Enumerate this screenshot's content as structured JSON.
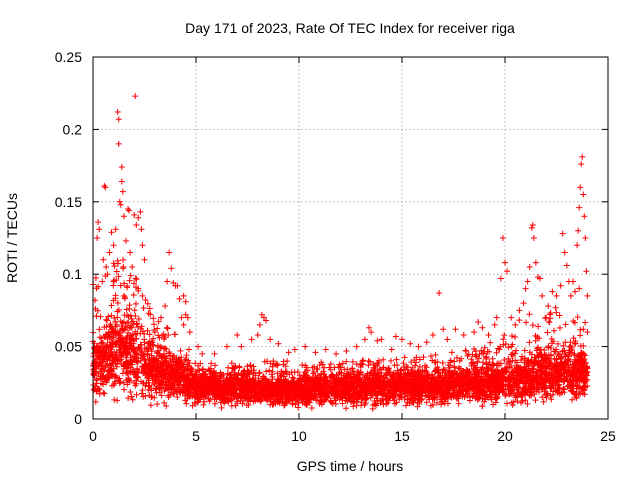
{
  "chart_data": {
    "type": "scatter",
    "title": "Day 171 of 2023, Rate Of TEC Index for receiver riga",
    "xlabel": "GPS time / hours",
    "ylabel": "ROTI / TECUs",
    "xlim": [
      0,
      25
    ],
    "ylim": [
      0,
      0.25
    ],
    "x_ticks": [
      0,
      5,
      10,
      15,
      20,
      25
    ],
    "x_tick_labels": [
      "0",
      "5",
      "10",
      "15",
      "20",
      "25"
    ],
    "y_ticks": [
      0,
      0.05,
      0.1,
      0.15,
      0.2,
      0.25
    ],
    "y_tick_labels": [
      "0",
      "0.05",
      "0.1",
      "0.15",
      "0.2",
      "0.25"
    ],
    "grid": true,
    "marker": "+",
    "marker_color": "#ff0000",
    "series": [
      {
        "name": "ROTI",
        "points": [
          [
            0.1,
            0.082
          ],
          [
            0.2,
            0.125
          ],
          [
            0.25,
            0.136
          ],
          [
            0.3,
            0.131
          ],
          [
            0.45,
            0.095
          ],
          [
            0.5,
            0.11
          ],
          [
            0.55,
            0.161
          ],
          [
            0.6,
            0.16
          ],
          [
            0.8,
            0.115
          ],
          [
            0.9,
            0.129
          ],
          [
            1.0,
            0.12
          ],
          [
            1.1,
            0.131
          ],
          [
            1.2,
            0.212
          ],
          [
            1.25,
            0.207
          ],
          [
            1.25,
            0.19
          ],
          [
            1.3,
            0.15
          ],
          [
            1.35,
            0.148
          ],
          [
            1.4,
            0.174
          ],
          [
            1.4,
            0.164
          ],
          [
            1.45,
            0.157
          ],
          [
            1.5,
            0.14
          ],
          [
            1.6,
            0.123
          ],
          [
            1.7,
            0.145
          ],
          [
            1.75,
            0.144
          ],
          [
            1.8,
            0.115
          ],
          [
            1.9,
            0.105
          ],
          [
            2.0,
            0.141
          ],
          [
            2.05,
            0.223
          ],
          [
            2.1,
            0.134
          ],
          [
            2.2,
            0.139
          ],
          [
            2.3,
            0.143
          ],
          [
            2.35,
            0.131
          ],
          [
            2.4,
            0.12
          ],
          [
            2.5,
            0.11
          ],
          [
            1.0,
            0.095
          ],
          [
            0.7,
            0.1
          ],
          [
            1.5,
            0.085
          ],
          [
            2.2,
            0.09
          ],
          [
            2.4,
            0.085
          ],
          [
            3.5,
            0.078
          ],
          [
            3.6,
            0.095
          ],
          [
            3.7,
            0.115
          ],
          [
            3.8,
            0.104
          ],
          [
            3.9,
            0.094
          ],
          [
            4.0,
            0.092
          ],
          [
            4.1,
            0.092
          ],
          [
            4.2,
            0.083
          ],
          [
            4.3,
            0.07
          ],
          [
            4.4,
            0.065
          ],
          [
            4.5,
            0.072
          ],
          [
            4.6,
            0.07
          ],
          [
            4.7,
            0.06
          ],
          [
            4.4,
            0.085
          ],
          [
            4.5,
            0.081
          ],
          [
            3.3,
            0.07
          ],
          [
            3.0,
            0.06
          ],
          [
            5.1,
            0.05
          ],
          [
            5.3,
            0.045
          ],
          [
            5.9,
            0.045
          ],
          [
            6.5,
            0.05
          ],
          [
            7.0,
            0.058
          ],
          [
            7.2,
            0.05
          ],
          [
            7.7,
            0.055
          ],
          [
            8.0,
            0.058
          ],
          [
            8.1,
            0.065
          ],
          [
            8.2,
            0.072
          ],
          [
            8.3,
            0.07
          ],
          [
            8.4,
            0.068
          ],
          [
            8.6,
            0.055
          ],
          [
            9.0,
            0.052
          ],
          [
            9.5,
            0.046
          ],
          [
            9.8,
            0.048
          ],
          [
            10.3,
            0.05
          ],
          [
            10.8,
            0.046
          ],
          [
            11.3,
            0.048
          ],
          [
            11.8,
            0.045
          ],
          [
            12.3,
            0.047
          ],
          [
            12.8,
            0.05
          ],
          [
            13.2,
            0.055
          ],
          [
            13.4,
            0.063
          ],
          [
            13.5,
            0.06
          ],
          [
            13.8,
            0.054
          ],
          [
            14.0,
            0.055
          ],
          [
            14.5,
            0.048
          ],
          [
            14.7,
            0.057
          ],
          [
            15.0,
            0.055
          ],
          [
            15.4,
            0.052
          ],
          [
            15.8,
            0.05
          ],
          [
            16.2,
            0.053
          ],
          [
            16.5,
            0.058
          ],
          [
            16.8,
            0.087
          ],
          [
            17.0,
            0.062
          ],
          [
            17.2,
            0.055
          ],
          [
            17.6,
            0.062
          ],
          [
            18.0,
            0.058
          ],
          [
            18.5,
            0.06
          ],
          [
            18.7,
            0.067
          ],
          [
            18.9,
            0.063
          ],
          [
            19.2,
            0.058
          ],
          [
            19.5,
            0.065
          ],
          [
            19.6,
            0.07
          ],
          [
            19.8,
            0.097
          ],
          [
            19.9,
            0.125
          ],
          [
            20.0,
            0.108
          ],
          [
            20.1,
            0.102
          ],
          [
            20.3,
            0.07
          ],
          [
            20.5,
            0.065
          ],
          [
            20.7,
            0.075
          ],
          [
            20.9,
            0.08
          ],
          [
            21.0,
            0.09
          ],
          [
            21.1,
            0.095
          ],
          [
            21.2,
            0.105
          ],
          [
            21.3,
            0.132
          ],
          [
            21.35,
            0.134
          ],
          [
            21.4,
            0.125
          ],
          [
            21.5,
            0.108
          ],
          [
            21.6,
            0.098
          ],
          [
            21.7,
            0.097
          ],
          [
            21.8,
            0.085
          ],
          [
            22.0,
            0.07
          ],
          [
            22.1,
            0.078
          ],
          [
            22.3,
            0.088
          ],
          [
            22.5,
            0.085
          ],
          [
            22.7,
            0.092
          ],
          [
            22.8,
            0.128
          ],
          [
            22.9,
            0.115
          ],
          [
            23.0,
            0.106
          ],
          [
            23.1,
            0.095
          ],
          [
            23.2,
            0.085
          ],
          [
            23.3,
            0.095
          ],
          [
            23.4,
            0.088
          ],
          [
            23.5,
            0.12
          ],
          [
            23.55,
            0.13
          ],
          [
            23.6,
            0.146
          ],
          [
            23.65,
            0.16
          ],
          [
            23.7,
            0.176
          ],
          [
            23.75,
            0.181
          ],
          [
            23.8,
            0.155
          ],
          [
            23.85,
            0.14
          ],
          [
            23.9,
            0.125
          ],
          [
            23.95,
            0.102
          ],
          [
            24.0,
            0.085
          ],
          [
            23.6,
            0.09
          ],
          [
            23.8,
            0.062
          ],
          [
            24.0,
            0.06
          ]
        ]
      }
    ],
    "density_envelope": {
      "description": "dense band of low ROTI values across the whole day (x in hours, y in TECU/min)",
      "x": [
        0,
        1,
        2,
        2.5,
        3,
        4,
        5,
        6,
        8,
        10,
        12,
        14,
        16,
        18,
        19,
        20,
        21,
        22,
        23,
        24
      ],
      "y_low": [
        0.005,
        0.006,
        0.007,
        0.007,
        0.006,
        0.006,
        0.006,
        0.006,
        0.005,
        0.005,
        0.005,
        0.005,
        0.006,
        0.006,
        0.006,
        0.006,
        0.006,
        0.006,
        0.007,
        0.008
      ],
      "y_mean": [
        0.035,
        0.045,
        0.045,
        0.038,
        0.032,
        0.028,
        0.022,
        0.021,
        0.02,
        0.02,
        0.021,
        0.022,
        0.022,
        0.023,
        0.024,
        0.026,
        0.028,
        0.03,
        0.032,
        0.03
      ],
      "y_high": [
        0.1,
        0.115,
        0.105,
        0.085,
        0.07,
        0.06,
        0.042,
        0.038,
        0.04,
        0.04,
        0.04,
        0.042,
        0.045,
        0.048,
        0.052,
        0.06,
        0.072,
        0.075,
        0.08,
        0.07
      ]
    }
  }
}
